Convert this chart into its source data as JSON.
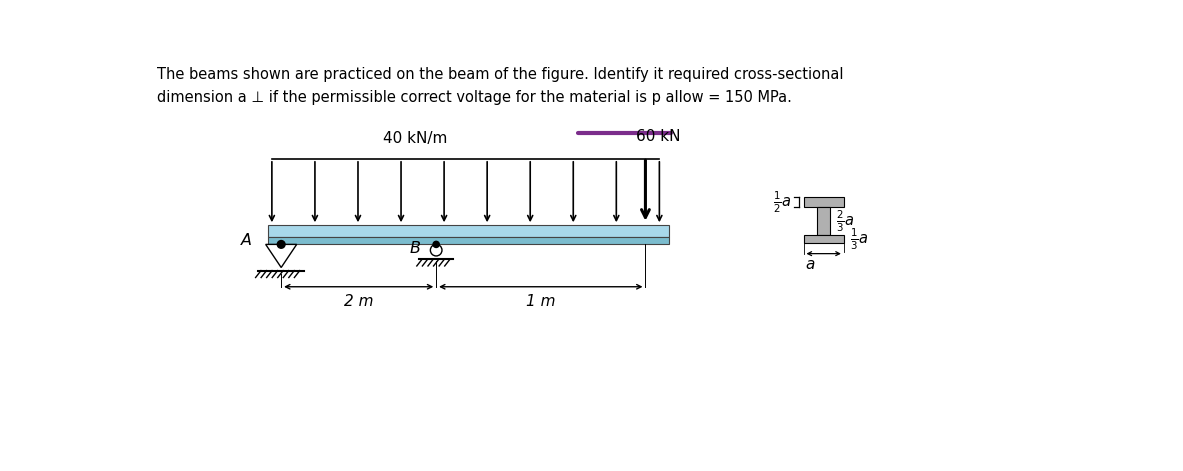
{
  "title_line1": "The beams shown are practiced on the beam of the figure. Identify it required cross-sectional",
  "title_line2": "dimension a ⊥ if the permissible correct voltage for the material is p allow = 150 MPa.",
  "beam_color_top": "#a8d8ea",
  "beam_color_bot": "#7bbcce",
  "dist_load_label": "40 kN/m",
  "point_load_label": "60 kN",
  "dim_2m": "2 m",
  "dim_1m": "1 m",
  "label_A": "A",
  "label_B": "B",
  "purple_line_color": "#7b2d8b",
  "background_color": "#ffffff"
}
